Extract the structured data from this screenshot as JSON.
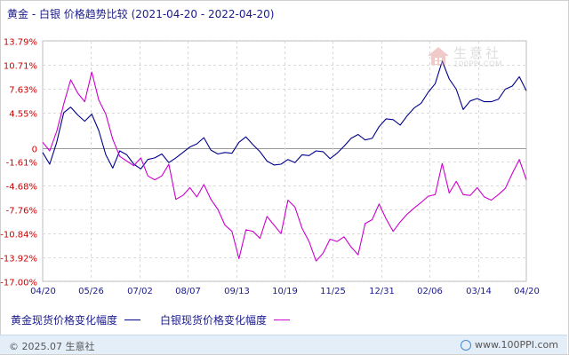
{
  "header": {
    "title": "黄金 - 白银  价格趋势比较",
    "date_range": "(2021-04-20 - 2022-04-20)"
  },
  "legend": [
    {
      "label": "黄金现货价格变化幅度",
      "color": "#00008b"
    },
    {
      "label": "白银现货价格变化幅度",
      "color": "#cc00cc"
    }
  ],
  "footer": {
    "copyright": "© 2025.07 生意社",
    "website": "www.100PPI.com"
  },
  "watermark": {
    "name": "生意社",
    "site": "100PPI.COM"
  },
  "chart_data": {
    "type": "line",
    "x_tick_labels": [
      "04/20",
      "05/26",
      "07/02",
      "08/07",
      "09/13",
      "10/19",
      "11/25",
      "12/31",
      "02/06",
      "03/14",
      "04/20"
    ],
    "y_tick_labels": [
      "13.79%",
      "10.71%",
      "7.63%",
      "4.55%",
      "0",
      "-1.61%",
      "-4.68%",
      "-7.76%",
      "-10.84%",
      "-13.92%",
      "-17.00%"
    ],
    "ylim": [
      -17.0,
      13.79
    ],
    "grid": true,
    "series": [
      {
        "name": "黄金现货价格变化幅度",
        "color": "#00008b",
        "values": [
          -0.5,
          -2.0,
          0.8,
          4.6,
          5.3,
          4.3,
          3.5,
          4.4,
          2.3,
          -0.8,
          -2.5,
          -0.3,
          -0.8,
          -2.0,
          -2.6,
          -1.4,
          -1.2,
          -0.7,
          -1.8,
          -1.2,
          -0.5,
          0.2,
          0.6,
          1.4,
          -0.2,
          -0.7,
          -0.5,
          -0.6,
          0.8,
          1.5,
          0.5,
          -0.4,
          -1.6,
          -2.1,
          -2.0,
          -1.4,
          -1.8,
          -0.8,
          -0.9,
          -0.3,
          -0.4,
          -1.3,
          -0.6,
          0.3,
          1.3,
          1.8,
          1.1,
          1.3,
          2.8,
          3.8,
          3.7,
          3.0,
          4.2,
          5.2,
          5.8,
          7.2,
          8.3,
          11.2,
          8.9,
          7.6,
          5.0,
          6.1,
          6.4,
          6.0,
          6.0,
          6.3,
          7.6,
          8.0,
          9.2,
          7.4
        ]
      },
      {
        "name": "白银现货价格变化幅度",
        "color": "#cc00cc",
        "values": [
          0.8,
          -0.3,
          2.2,
          5.7,
          8.8,
          7.1,
          6.0,
          9.8,
          6.2,
          4.4,
          1.2,
          -1.0,
          -1.6,
          -2.2,
          -1.2,
          -3.5,
          -4.0,
          -3.5,
          -2.0,
          -6.5,
          -6.0,
          -5.0,
          -6.2,
          -4.6,
          -6.5,
          -7.8,
          -9.8,
          -10.6,
          -14.1,
          -10.4,
          -10.6,
          -11.5,
          -8.7,
          -9.8,
          -10.9,
          -6.6,
          -7.5,
          -10.2,
          -11.9,
          -14.4,
          -13.4,
          -11.6,
          -11.9,
          -11.3,
          -12.6,
          -13.6,
          -9.6,
          -9.1,
          -7.1,
          -9.0,
          -10.6,
          -9.4,
          -8.4,
          -7.6,
          -6.9,
          -6.1,
          -5.9,
          -1.9,
          -5.7,
          -4.2,
          -5.9,
          -6.0,
          -5.0,
          -6.2,
          -6.6,
          -5.9,
          -5.1,
          -3.2,
          -1.4,
          -4.0
        ]
      }
    ]
  }
}
